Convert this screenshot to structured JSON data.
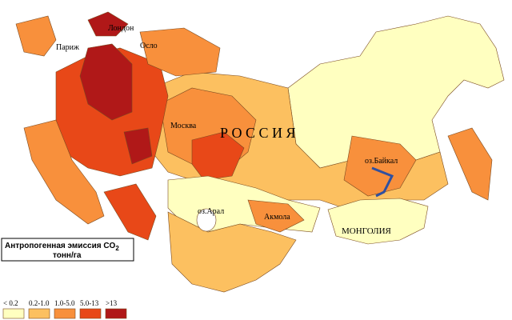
{
  "map": {
    "labels": {
      "london": "Лондон",
      "paris": "Париж",
      "oslo": "Осло",
      "moscow": "Москва",
      "russia": "Р О С С И Я",
      "baikal": "оз.Байкал",
      "aral": "оз.Арал",
      "akmola": "Акмола",
      "mongolia": "МОНГОЛИЯ"
    },
    "legend": {
      "title": {
        "line1": "Антропогенная эмиссия CO",
        "subscript": "2",
        "line2": "тонн/га"
      },
      "items": [
        {
          "label": "< 0.2",
          "color": "#ffffc0"
        },
        {
          "label": "0.2-1.0",
          "color": "#fcc060"
        },
        {
          "label": "1.0-5.0",
          "color": "#f8903c"
        },
        {
          "label": "5.0-13",
          "color": "#e84818"
        },
        {
          "label": ">13",
          "color": "#b01818"
        }
      ]
    }
  }
}
